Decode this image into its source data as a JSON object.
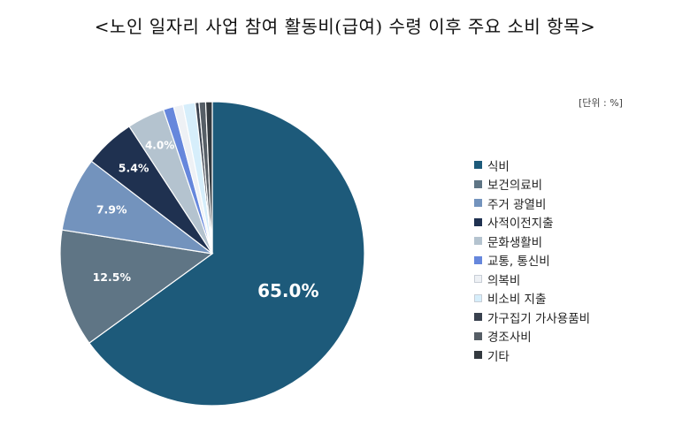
{
  "title": "<노인 일자리 사업 참여 활동비(급여) 수령 이후 주요 소비 항목>",
  "unit_label": "[단위 : %]",
  "chart_data": {
    "type": "pie",
    "unit": "%",
    "categories": [
      "식비",
      "보건의료비",
      "주거 광열비",
      "사적이전지출",
      "문화생활비",
      "교통, 통신비",
      "의복비",
      "비소비 지출",
      "가구집기 가사용품비",
      "경조사비",
      "기타"
    ],
    "values": [
      65.0,
      12.5,
      7.9,
      5.4,
      4.0,
      1.1,
      1.0,
      1.3,
      0.4,
      0.7,
      0.7
    ],
    "data_labels": [
      "65.0%",
      "12.5%",
      "7.9%",
      "5.4%",
      "4.0%",
      "",
      "",
      "",
      "",
      "",
      ""
    ],
    "colors": [
      "#1d5a7a",
      "#5f7585",
      "#7393bd",
      "#1f3150",
      "#b4c3cf",
      "#6687dc",
      "#eef1f5",
      "#d6eefb",
      "#39414e",
      "#565e66",
      "#33393f"
    ],
    "label_colors": [
      "#ffffff",
      "#ffffff",
      "#ffffff",
      "#ffffff",
      "#ffffff"
    ],
    "legend_position": "right"
  }
}
